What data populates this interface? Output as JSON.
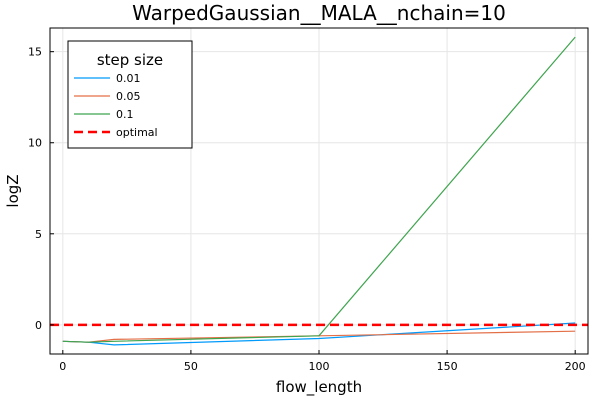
{
  "chart_data": {
    "type": "line",
    "title": "WarpedGaussian__MALA__nchain=10",
    "xlabel": "flow_length",
    "ylabel": "logZ",
    "xlim": [
      -5,
      205
    ],
    "ylim": [
      -1.6,
      16.3
    ],
    "xticks": [
      0,
      50,
      100,
      150,
      200
    ],
    "yticks": [
      0,
      5,
      10,
      15
    ],
    "grid": true,
    "legend": {
      "title": "step size",
      "placement": "top-left"
    },
    "series": [
      {
        "name": "0.01",
        "color": "#009AFA",
        "style": "solid",
        "x": [
          0,
          10,
          20,
          100,
          200
        ],
        "y": [
          -0.9,
          -0.95,
          -1.1,
          -0.75,
          0.1
        ]
      },
      {
        "name": "0.05",
        "color": "#E36F47",
        "style": "solid",
        "x": [
          0,
          10,
          20,
          100,
          200
        ],
        "y": [
          -0.9,
          -0.95,
          -0.8,
          -0.6,
          -0.35
        ]
      },
      {
        "name": "0.1",
        "color": "#3EA44E",
        "style": "solid",
        "x": [
          0,
          10,
          20,
          100,
          200
        ],
        "y": [
          -0.9,
          -0.95,
          -0.9,
          -0.6,
          15.8
        ]
      },
      {
        "name": "optimal",
        "color": "#FF0000",
        "style": "dashed",
        "hline": 0
      }
    ]
  }
}
